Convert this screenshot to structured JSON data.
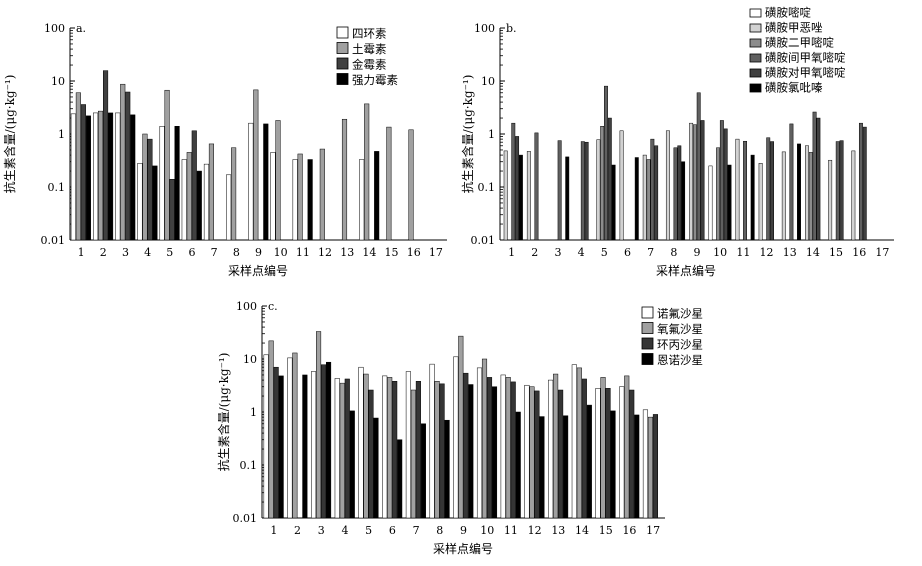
{
  "colors": {
    "panel_a": [
      "#ffffff",
      "#a0a0a0",
      "#404040",
      "#000000"
    ],
    "panel_b": [
      "#ffffff",
      "#d2d2d2",
      "#8c8c8c",
      "#606060",
      "#404040",
      "#000000"
    ],
    "panel_c": [
      "#ffffff",
      "#a0a0a0",
      "#353535",
      "#000000"
    ]
  },
  "chart_data": [
    {
      "type": "bar",
      "panel_label": "a.",
      "xlabel": "采样点编号",
      "ylabel": "抗生素含量/(μg·kg⁻¹)",
      "yscale": "log",
      "ylim": [
        0.01,
        100
      ],
      "yticks": [
        "0.01",
        "0.1",
        "1",
        "10",
        "100"
      ],
      "categories": [
        "1",
        "2",
        "3",
        "4",
        "5",
        "6",
        "7",
        "8",
        "9",
        "10",
        "11",
        "12",
        "13",
        "14",
        "15",
        "16",
        "17"
      ],
      "legend_position": "top-right",
      "series": [
        {
          "name": "四环素",
          "values": [
            2.4,
            2.5,
            2.5,
            0.28,
            1.4,
            0.33,
            0.27,
            0.17,
            1.6,
            0.45,
            0.33,
            null,
            null,
            0.33,
            null,
            null,
            null
          ]
        },
        {
          "name": "土霉素",
          "values": [
            6.0,
            2.7,
            8.7,
            1.0,
            6.7,
            0.45,
            0.65,
            0.55,
            6.8,
            1.8,
            0.42,
            0.52,
            1.9,
            3.7,
            1.35,
            1.2,
            null
          ]
        },
        {
          "name": "金霉素",
          "values": [
            3.6,
            15.7,
            6.2,
            0.8,
            0.14,
            1.15,
            null,
            null,
            null,
            null,
            null,
            null,
            null,
            null,
            null,
            null,
            null
          ]
        },
        {
          "name": "强力霉素",
          "values": [
            2.2,
            2.5,
            2.3,
            0.25,
            1.4,
            0.2,
            null,
            null,
            1.55,
            null,
            0.33,
            null,
            null,
            0.47,
            null,
            null,
            null
          ]
        }
      ]
    },
    {
      "type": "bar",
      "panel_label": "b.",
      "xlabel": "采样点编号",
      "ylabel": "抗生素含量/(μg·kg⁻¹)",
      "yscale": "log",
      "ylim": [
        0.01,
        100
      ],
      "yticks": [
        "0.01",
        "0.1",
        "1",
        "10",
        "100"
      ],
      "categories": [
        "1",
        "2",
        "3",
        "4",
        "5",
        "6",
        "7",
        "8",
        "9",
        "10",
        "11",
        "12",
        "13",
        "14",
        "15",
        "16",
        "17"
      ],
      "legend_position": "top-right",
      "series": [
        {
          "name": "磺胺嘧啶",
          "values": [
            null,
            null,
            null,
            null,
            null,
            null,
            null,
            null,
            null,
            0.25,
            null,
            null,
            null,
            null,
            null,
            null,
            null
          ]
        },
        {
          "name": "磺胺甲恶唑",
          "values": [
            0.48,
            0.47,
            null,
            null,
            0.78,
            1.15,
            0.4,
            1.15,
            1.6,
            null,
            0.8,
            0.28,
            0.46,
            0.6,
            0.32,
            0.48,
            null
          ]
        },
        {
          "name": "磺胺二甲嘧啶",
          "values": [
            null,
            null,
            null,
            null,
            1.4,
            null,
            0.33,
            null,
            1.5,
            0.55,
            null,
            null,
            null,
            0.45,
            null,
            null,
            null
          ]
        },
        {
          "name": "磺胺间甲氧嘧啶",
          "values": [
            1.6,
            1.05,
            0.75,
            0.72,
            8.0,
            null,
            0.8,
            0.55,
            6.0,
            1.8,
            0.73,
            0.85,
            1.55,
            2.6,
            0.72,
            1.6,
            null
          ]
        },
        {
          "name": "磺胺对甲氧嘧啶",
          "values": [
            0.9,
            null,
            null,
            0.7,
            2.0,
            null,
            0.6,
            0.6,
            1.8,
            1.25,
            null,
            0.72,
            null,
            2.0,
            0.75,
            1.35,
            null
          ]
        },
        {
          "name": "磺胺氯吡嗪",
          "values": [
            0.4,
            null,
            0.37,
            null,
            0.26,
            0.36,
            null,
            0.3,
            null,
            0.26,
            0.4,
            null,
            0.65,
            null,
            null,
            null,
            null
          ]
        }
      ]
    },
    {
      "type": "bar",
      "panel_label": "c.",
      "xlabel": "采样点编号",
      "ylabel": "抗生素含量/(μg·kg⁻¹)",
      "yscale": "log",
      "ylim": [
        0.01,
        100
      ],
      "yticks": [
        "0.01",
        "0.1",
        "1",
        "10",
        "100"
      ],
      "categories": [
        "1",
        "2",
        "3",
        "4",
        "5",
        "6",
        "7",
        "8",
        "9",
        "10",
        "11",
        "12",
        "13",
        "14",
        "15",
        "16",
        "17"
      ],
      "legend_position": "top-right",
      "series": [
        {
          "name": "诺氟沙星",
          "values": [
            12.0,
            10.5,
            5.8,
            4.3,
            7.0,
            4.8,
            5.8,
            8.0,
            11.0,
            6.8,
            5.0,
            3.2,
            4.0,
            7.8,
            2.8,
            3.0,
            1.1
          ]
        },
        {
          "name": "氧氟沙星",
          "values": [
            22.0,
            13.0,
            33.0,
            3.5,
            5.2,
            4.5,
            2.6,
            3.8,
            27.0,
            10.0,
            4.5,
            3.0,
            5.2,
            6.8,
            4.5,
            4.8,
            0.8
          ]
        },
        {
          "name": "环丙沙星",
          "values": [
            7.0,
            null,
            7.8,
            4.2,
            2.6,
            3.8,
            3.8,
            3.4,
            5.4,
            4.5,
            3.7,
            2.5,
            2.6,
            4.2,
            2.8,
            2.6,
            0.9
          ]
        },
        {
          "name": "恩诺沙星",
          "values": [
            4.8,
            5.0,
            8.7,
            1.05,
            0.77,
            0.3,
            0.6,
            0.7,
            3.3,
            3.0,
            1.0,
            0.82,
            0.85,
            1.35,
            1.05,
            0.88,
            null
          ]
        }
      ]
    }
  ]
}
